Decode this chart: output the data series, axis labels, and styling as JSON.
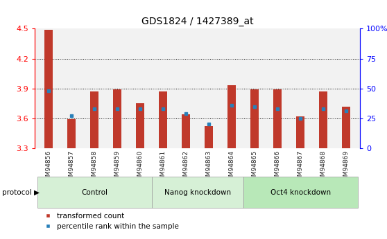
{
  "title": "GDS1824 / 1427389_at",
  "samples": [
    "GSM94856",
    "GSM94857",
    "GSM94858",
    "GSM94859",
    "GSM94860",
    "GSM94861",
    "GSM94862",
    "GSM94863",
    "GSM94864",
    "GSM94865",
    "GSM94866",
    "GSM94867",
    "GSM94868",
    "GSM94869"
  ],
  "transformed_count": [
    4.49,
    3.59,
    3.87,
    3.89,
    3.75,
    3.87,
    3.64,
    3.52,
    3.93,
    3.89,
    3.89,
    3.62,
    3.87,
    3.72
  ],
  "percentile_rank_pct": [
    48,
    27,
    33,
    33,
    33,
    33,
    29,
    20,
    36,
    35,
    33,
    25,
    33,
    31
  ],
  "ymin": 3.3,
  "ymax": 4.5,
  "yticks": [
    3.3,
    3.6,
    3.9,
    4.2,
    4.5
  ],
  "right_yticks": [
    0,
    25,
    50,
    75,
    100
  ],
  "bar_color": "#c0392b",
  "percentile_color": "#2980b9",
  "groups": [
    {
      "label": "Control",
      "start": 0,
      "end": 5,
      "color": "#d6f0d6"
    },
    {
      "label": "Nanog knockdown",
      "start": 5,
      "end": 9,
      "color": "#d6f0d6"
    },
    {
      "label": "Oct4 knockdown",
      "start": 9,
      "end": 14,
      "color": "#b8e8b8"
    }
  ],
  "legend_items": [
    {
      "label": "transformed count",
      "color": "#c0392b"
    },
    {
      "label": "percentile rank within the sample",
      "color": "#2980b9"
    }
  ]
}
